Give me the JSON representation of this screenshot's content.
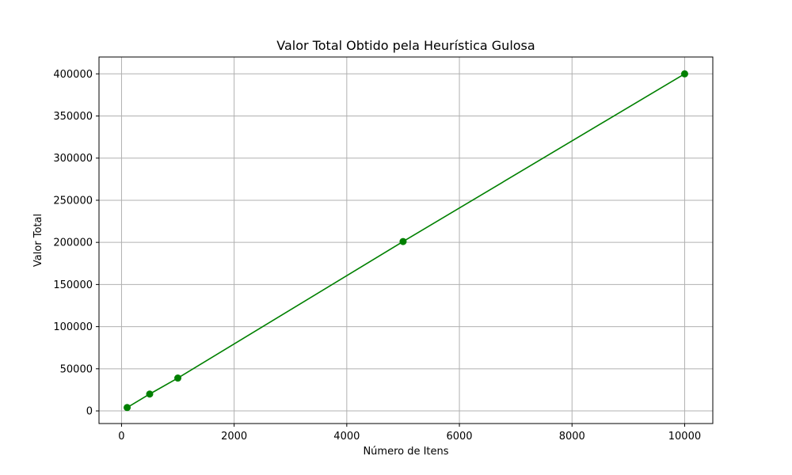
{
  "chart_data": {
    "type": "line",
    "title": "Valor Total Obtido pela Heurística Gulosa",
    "xlabel": "Número de Itens",
    "ylabel": "Valor Total",
    "x": [
      100,
      500,
      1000,
      5000,
      10000
    ],
    "series": [
      {
        "values": [
          4000,
          20000,
          39000,
          201000,
          400000
        ],
        "color": "#008000",
        "marker": "circle"
      }
    ],
    "xlim": [
      -400,
      10500
    ],
    "ylim": [
      -15000,
      420000
    ],
    "xticks": [
      0,
      2000,
      4000,
      6000,
      8000,
      10000
    ],
    "yticks": [
      0,
      50000,
      100000,
      150000,
      200000,
      250000,
      300000,
      350000,
      400000
    ],
    "grid": true
  }
}
